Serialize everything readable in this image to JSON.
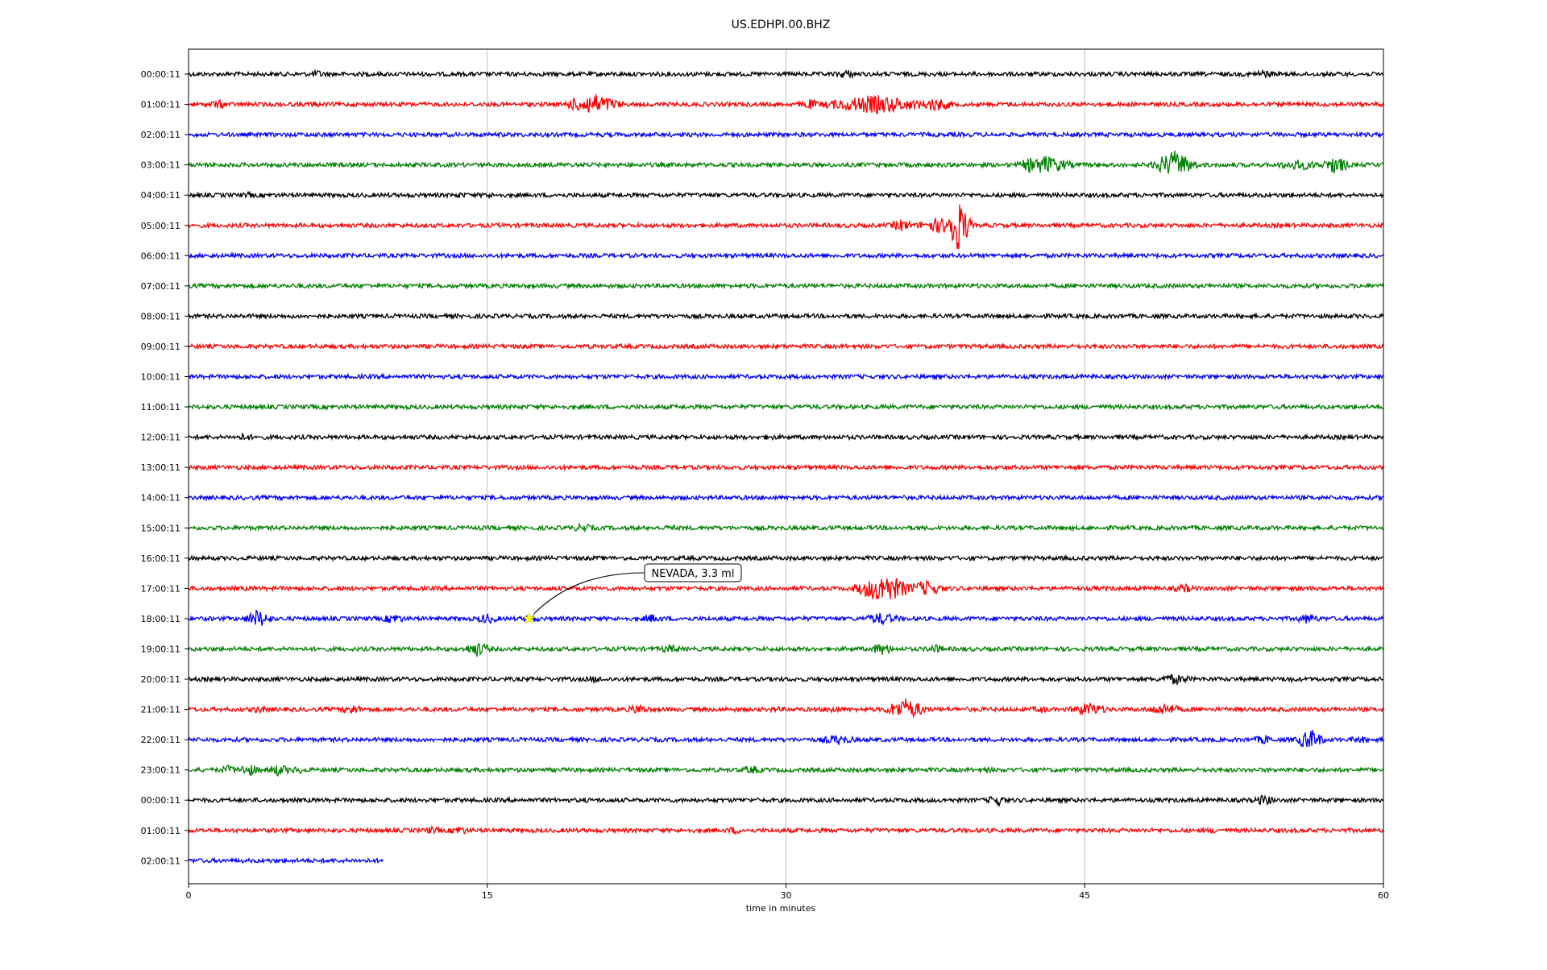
{
  "chart_data": {
    "type": "line",
    "title": "US.EDHPI.00.BHZ",
    "xlabel": "time in minutes",
    "ylabel": "",
    "xlim": [
      0,
      60
    ],
    "xticks": [
      0,
      15,
      30,
      45,
      60
    ],
    "grid": "vertical",
    "colors": [
      "#000000",
      "#ff0000",
      "#0000ff",
      "#008000"
    ],
    "rows": [
      {
        "label": "00:00:11",
        "end": 60,
        "events": [
          [
            6.5,
            5,
            1
          ],
          [
            33.0,
            6,
            1
          ],
          [
            54.0,
            6,
            1
          ]
        ]
      },
      {
        "label": "01:00:11",
        "end": 60,
        "events": [
          [
            1.5,
            6,
            1
          ],
          [
            6.3,
            4,
            1
          ],
          [
            20.3,
            14,
            2
          ],
          [
            31.2,
            7,
            1
          ],
          [
            34.5,
            12,
            4
          ],
          [
            37.5,
            9,
            1.5
          ]
        ]
      },
      {
        "label": "02:00:11",
        "end": 60,
        "events": []
      },
      {
        "label": "03:00:11",
        "end": 60,
        "events": [
          [
            42.3,
            10,
            1
          ],
          [
            43.0,
            12,
            2
          ],
          [
            49.5,
            18,
            1.5
          ],
          [
            55.8,
            7,
            2
          ],
          [
            57.6,
            12,
            1
          ]
        ]
      },
      {
        "label": "04:00:11",
        "end": 60,
        "events": [
          [
            3.0,
            4,
            1
          ],
          [
            13.6,
            4,
            1
          ],
          [
            15.0,
            4,
            1
          ]
        ]
      },
      {
        "label": "05:00:11",
        "end": 60,
        "events": [
          [
            35.8,
            8,
            1
          ],
          [
            37.6,
            10,
            1.5
          ],
          [
            38.6,
            34,
            0.9
          ]
        ]
      },
      {
        "label": "06:00:11",
        "end": 60,
        "events": []
      },
      {
        "label": "07:00:11",
        "end": 60,
        "events": []
      },
      {
        "label": "08:00:11",
        "end": 60,
        "events": []
      },
      {
        "label": "09:00:11",
        "end": 60,
        "events": []
      },
      {
        "label": "10:00:11",
        "end": 60,
        "events": []
      },
      {
        "label": "11:00:11",
        "end": 60,
        "events": []
      },
      {
        "label": "12:00:11",
        "end": 60,
        "events": [
          [
            2.8,
            5,
            1
          ],
          [
            29.2,
            4,
            1
          ]
        ]
      },
      {
        "label": "13:00:11",
        "end": 60,
        "events": []
      },
      {
        "label": "14:00:11",
        "end": 60,
        "events": []
      },
      {
        "label": "15:00:11",
        "end": 60,
        "events": [
          [
            19.8,
            6,
            1
          ],
          [
            24.2,
            4,
            1
          ]
        ]
      },
      {
        "label": "16:00:11",
        "end": 60,
        "events": []
      },
      {
        "label": "17:00:11",
        "end": 60,
        "events": [
          [
            34.9,
            19,
            2
          ],
          [
            37.0,
            10,
            1.5
          ],
          [
            50.0,
            6,
            1
          ]
        ]
      },
      {
        "label": "18:00:11",
        "end": 60,
        "events": [
          [
            3.5,
            12,
            1
          ],
          [
            10.3,
            7,
            1
          ],
          [
            15.0,
            7,
            1
          ],
          [
            17.2,
            5,
            1
          ],
          [
            23.3,
            6,
            1
          ],
          [
            34.8,
            8,
            1.5
          ],
          [
            56.2,
            7,
            1
          ]
        ]
      },
      {
        "label": "19:00:11",
        "end": 60,
        "events": [
          [
            14.5,
            10,
            1
          ],
          [
            24.2,
            6,
            1
          ],
          [
            34.8,
            8,
            1
          ],
          [
            37.5,
            6,
            1
          ]
        ]
      },
      {
        "label": "20:00:11",
        "end": 60,
        "events": [
          [
            20.4,
            5,
            1
          ],
          [
            49.5,
            7,
            1.5
          ],
          [
            55.2,
            4,
            1
          ]
        ]
      },
      {
        "label": "21:00:11",
        "end": 60,
        "events": [
          [
            3.5,
            5,
            1
          ],
          [
            8.2,
            7,
            1
          ],
          [
            22.6,
            7,
            1
          ],
          [
            29.5,
            4,
            1
          ],
          [
            32.3,
            5,
            1
          ],
          [
            36.0,
            14,
            1.5
          ],
          [
            42.8,
            5,
            1
          ],
          [
            45.2,
            9,
            1.5
          ],
          [
            49.0,
            8,
            1.5
          ]
        ]
      },
      {
        "label": "22:00:11",
        "end": 60,
        "events": [
          [
            32.6,
            7,
            1.5
          ],
          [
            54.0,
            6,
            1
          ],
          [
            56.3,
            14,
            1
          ],
          [
            58.8,
            5,
            1
          ]
        ]
      },
      {
        "label": "23:00:11",
        "end": 60,
        "events": [
          [
            2.0,
            6,
            1
          ],
          [
            3.0,
            8,
            1
          ],
          [
            4.5,
            8,
            1
          ],
          [
            5.5,
            5,
            1
          ],
          [
            28.3,
            6,
            1
          ],
          [
            40.1,
            4,
            1
          ]
        ]
      },
      {
        "label": "00:00:11",
        "end": 60,
        "events": [
          [
            40.6,
            8,
            0.8
          ],
          [
            54.0,
            7,
            1
          ]
        ]
      },
      {
        "label": "01:00:11",
        "end": 60,
        "events": [
          [
            12.2,
            5,
            1
          ],
          [
            13.6,
            6,
            1
          ],
          [
            27.4,
            5,
            1
          ],
          [
            51.5,
            4,
            1
          ]
        ]
      },
      {
        "label": "02:00:11",
        "end": 9.8,
        "events": []
      }
    ],
    "annotations": [
      {
        "text": "NEVADA, 3.3 ml",
        "row": 18,
        "x": 17.1,
        "marker": "star",
        "marker_color": "#ffff00"
      }
    ]
  }
}
